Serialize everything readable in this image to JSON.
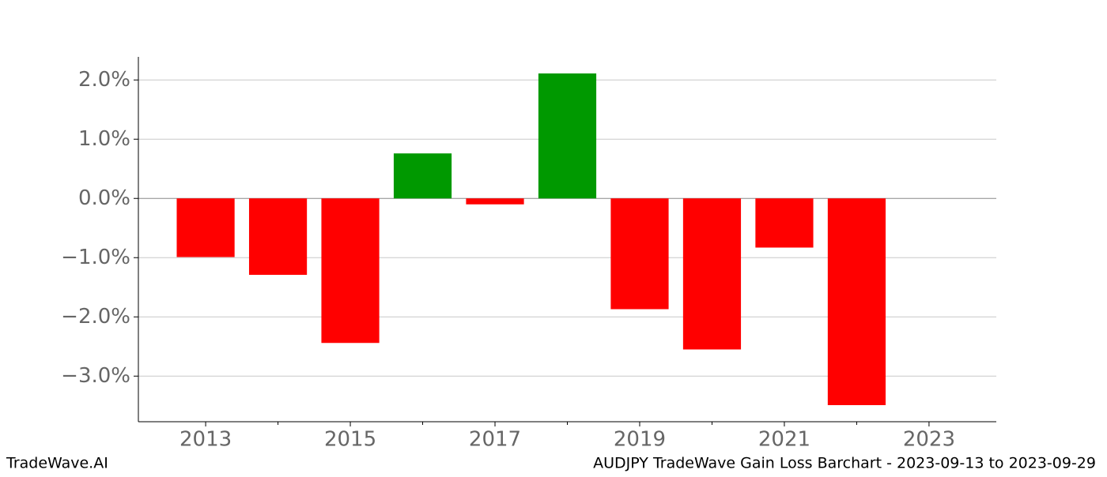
{
  "chart_data": {
    "type": "bar",
    "title": "AUDJPY TradeWave Gain Loss Barchart - 2023-09-13 to 2023-09-29",
    "source": "TradeWave.AI",
    "x": [
      2013,
      2014,
      2015,
      2016,
      2017,
      2018,
      2019,
      2020,
      2021,
      2022
    ],
    "values": [
      -0.99,
      -1.29,
      -2.44,
      0.76,
      -0.1,
      2.11,
      -1.87,
      -2.55,
      -0.83,
      -3.49
    ],
    "colors": [
      "#ff0000",
      "#ff0000",
      "#ff0000",
      "#009900",
      "#ff0000",
      "#009900",
      "#ff0000",
      "#ff0000",
      "#ff0000",
      "#ff0000"
    ],
    "xlim": [
      2012.07,
      2023.93
    ],
    "xticks": [
      2013,
      2015,
      2017,
      2019,
      2021,
      2023
    ],
    "xminorticks": [
      2014,
      2016,
      2018,
      2020,
      2022
    ],
    "ylim": [
      -3.77,
      2.39
    ],
    "yticks": [
      {
        "value": -3,
        "label": "−3.0%"
      },
      {
        "value": -2,
        "label": "−2.0%"
      },
      {
        "value": -1,
        "label": "−1.0%"
      },
      {
        "value": 0,
        "label": "0.0%"
      },
      {
        "value": 1,
        "label": "1.0%"
      },
      {
        "value": 2,
        "label": "2.0%"
      }
    ],
    "grid": true
  }
}
